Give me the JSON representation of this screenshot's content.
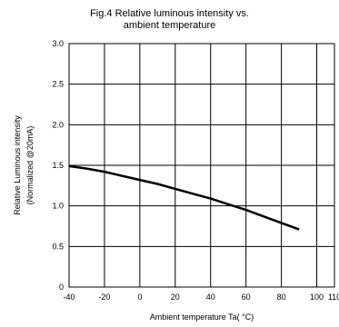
{
  "chart_data": {
    "type": "line",
    "title_line1": "Fig.4 Relative luminous intensity vs.",
    "title_line2": "ambient temperature",
    "xlabel": "Ambient temperature Ta( °C)",
    "ylabel_line1": "Relative Luminous intensity",
    "ylabel_line2": "(Normalized @20mA)",
    "xlim": [
      -40,
      110
    ],
    "ylim": [
      0,
      3.0
    ],
    "x_ticks": [
      -40,
      -20,
      0,
      20,
      40,
      60,
      80,
      100,
      110
    ],
    "x_tick_labels": [
      "-40",
      "-20",
      "0",
      "20",
      "40",
      "60",
      "80",
      "100",
      "110"
    ],
    "y_ticks": [
      0,
      0.5,
      1.0,
      1.5,
      2.0,
      2.5,
      3.0
    ],
    "y_tick_labels": [
      "0",
      "0.5",
      "1.0",
      "1.5",
      "2.0",
      "2.5",
      "3.0"
    ],
    "grid": true,
    "series": [
      {
        "x": [
          -40,
          -30,
          -20,
          -10,
          0,
          10,
          20,
          30,
          40,
          50,
          60,
          70,
          80,
          90
        ],
        "y": [
          1.49,
          1.46,
          1.42,
          1.37,
          1.32,
          1.27,
          1.21,
          1.15,
          1.09,
          1.02,
          0.95,
          0.87,
          0.79,
          0.71
        ]
      }
    ]
  }
}
